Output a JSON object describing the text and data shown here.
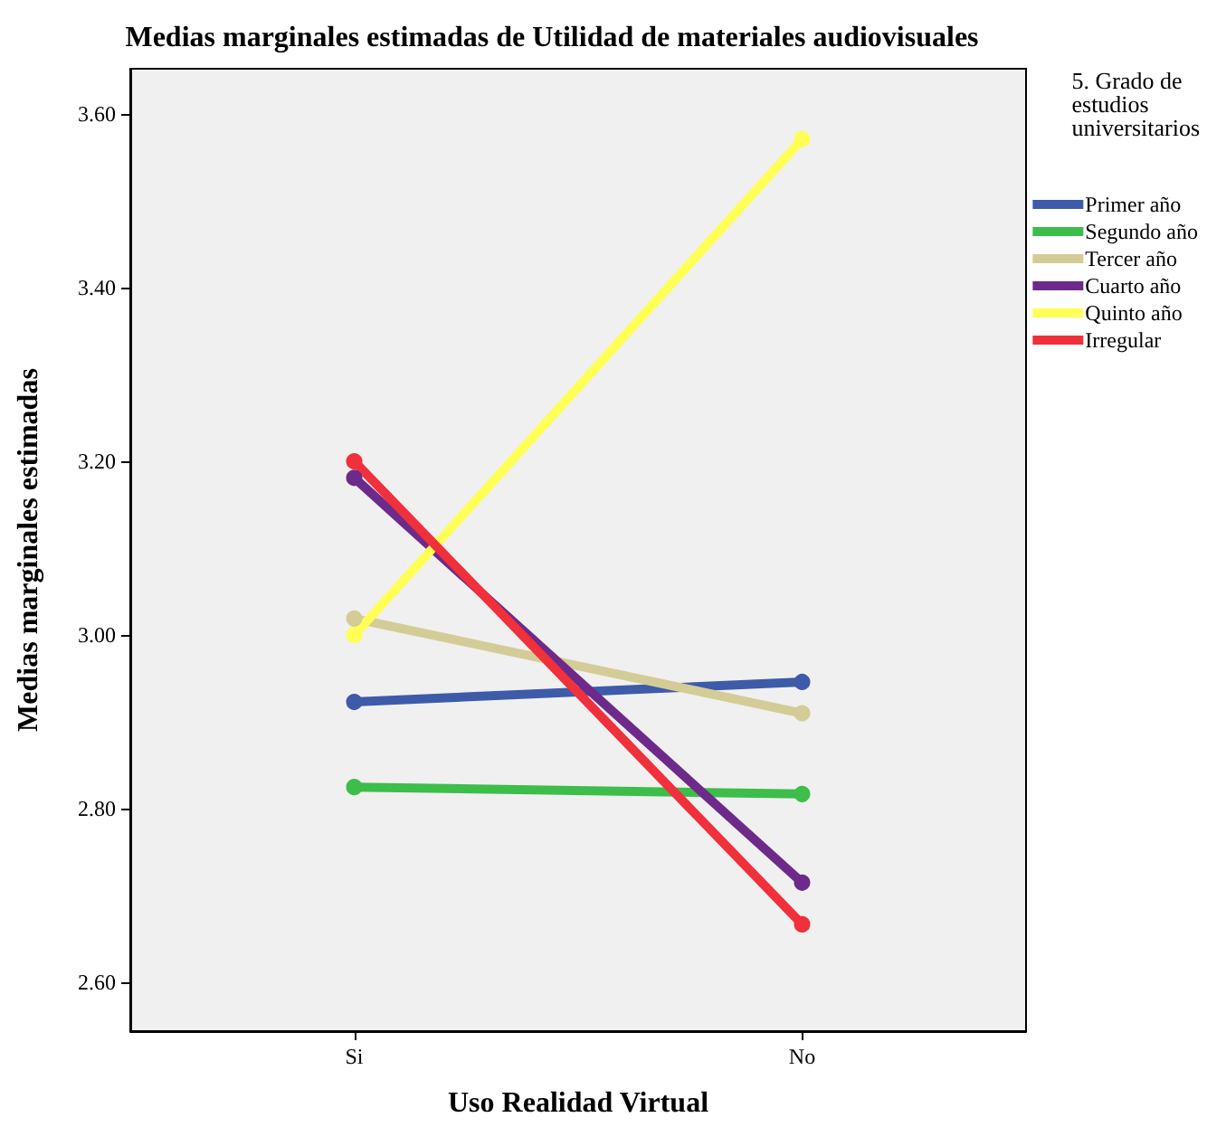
{
  "chart_data": {
    "type": "line",
    "title": "Medias marginales estimadas de Utilidad de materiales audiovisuales",
    "xlabel": "Uso Realidad Virtual",
    "ylabel": "Medias marginales estimadas",
    "legend_title": "5. Grado de estudios universitarios",
    "categories": [
      "Si",
      "No"
    ],
    "series": [
      {
        "name": "Primer año",
        "color": "#3e5ba9",
        "values": [
          2.923,
          2.946
        ]
      },
      {
        "name": "Segundo año",
        "color": "#3dbd4a",
        "values": [
          2.825,
          2.817
        ]
      },
      {
        "name": "Tercer año",
        "color": "#d4cc96",
        "values": [
          3.019,
          2.91
        ]
      },
      {
        "name": "Cuarto año",
        "color": "#6e2a8a",
        "values": [
          3.181,
          2.715
        ]
      },
      {
        "name": "Quinto año",
        "color": "#ffff55",
        "values": [
          3.0,
          3.571
        ]
      },
      {
        "name": "Irregular",
        "color": "#f0303a",
        "values": [
          3.2,
          2.667
        ]
      }
    ],
    "ylim": [
      2.544,
      3.652
    ],
    "yticks": [
      {
        "value": 2.6,
        "label": "2.60"
      },
      {
        "value": 2.8,
        "label": "2.80"
      },
      {
        "value": 3.0,
        "label": "3.00"
      },
      {
        "value": 3.2,
        "label": "3.20"
      },
      {
        "value": 3.4,
        "label": "3.40"
      },
      {
        "value": 3.6,
        "label": "3.60"
      }
    ],
    "grid": false,
    "legend": "top right",
    "marker": "circle",
    "line_style": "solid"
  }
}
